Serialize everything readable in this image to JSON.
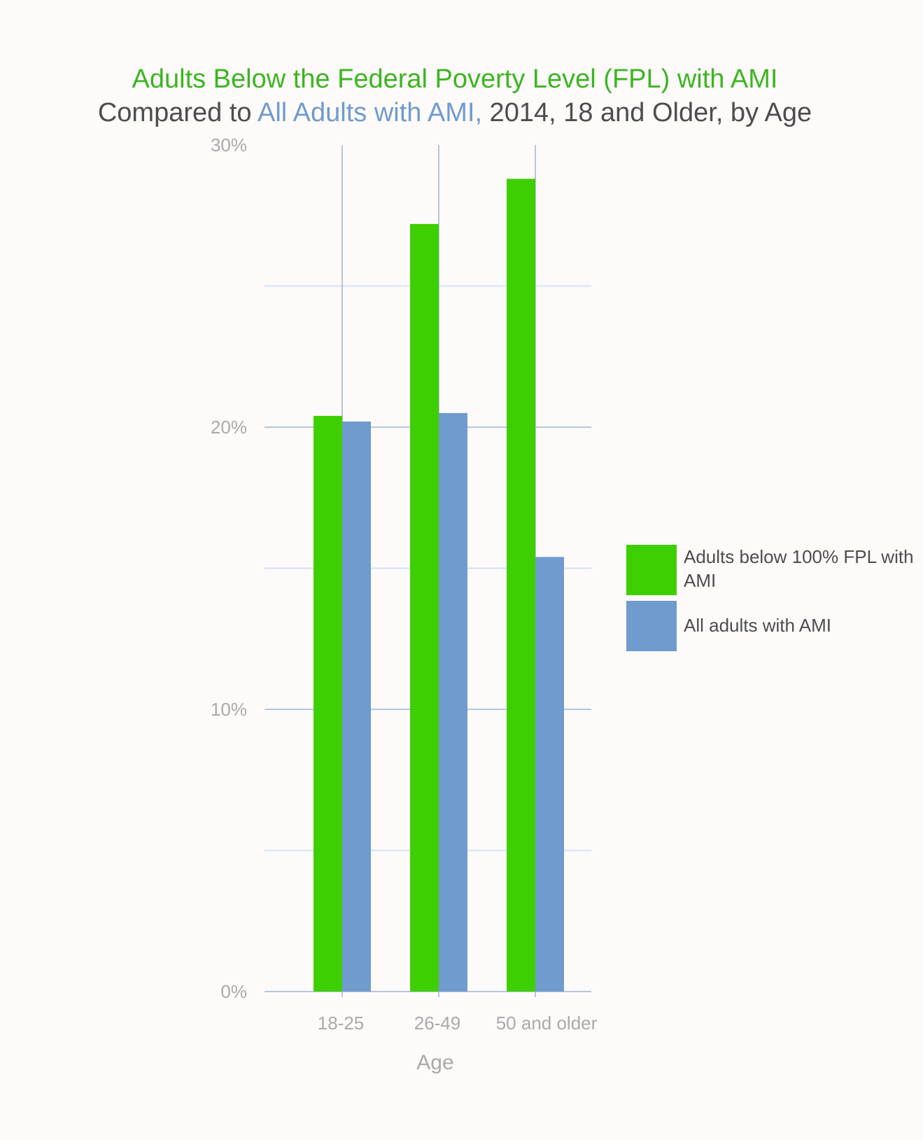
{
  "title": {
    "line1": "Adults Below the Federal Poverty Level (FPL) with AMI",
    "line2_prefix": "Compared to ",
    "line2_highlight": "All Adults with AMI,",
    "line2_suffix": " 2014, 18 and Older, by Age"
  },
  "colors": {
    "background": "#fdfaf9",
    "green": "#3ecf00",
    "blue": "#6f9bcf",
    "title_green": "#3cb521",
    "title_blue": "#6f9bcf",
    "title_dark": "#4d4d4d",
    "axis_text": "#aaaaaa",
    "grid_major": "#9fb4d6",
    "grid_minor": "#d4e3f7"
  },
  "chart_data": {
    "type": "bar",
    "categories": [
      "18-25",
      "26-49",
      "50 and older"
    ],
    "series": [
      {
        "name": "Adults below 100% FPL with AMI",
        "color": "#3ecf00",
        "values": [
          20.4,
          27.2,
          28.8
        ]
      },
      {
        "name": "All adults with AMI",
        "color": "#6f9bcf",
        "values": [
          20.2,
          20.5,
          15.4
        ]
      }
    ],
    "xlabel": "Age",
    "ylabel": "",
    "ylim": [
      0,
      30
    ],
    "yticks": [
      "0%",
      "10%",
      "20%",
      "30%"
    ],
    "ytick_values": [
      0,
      10,
      20,
      30
    ],
    "minor_grid_values": [
      5,
      15,
      25
    ],
    "grid": true,
    "legend_position": "right"
  }
}
